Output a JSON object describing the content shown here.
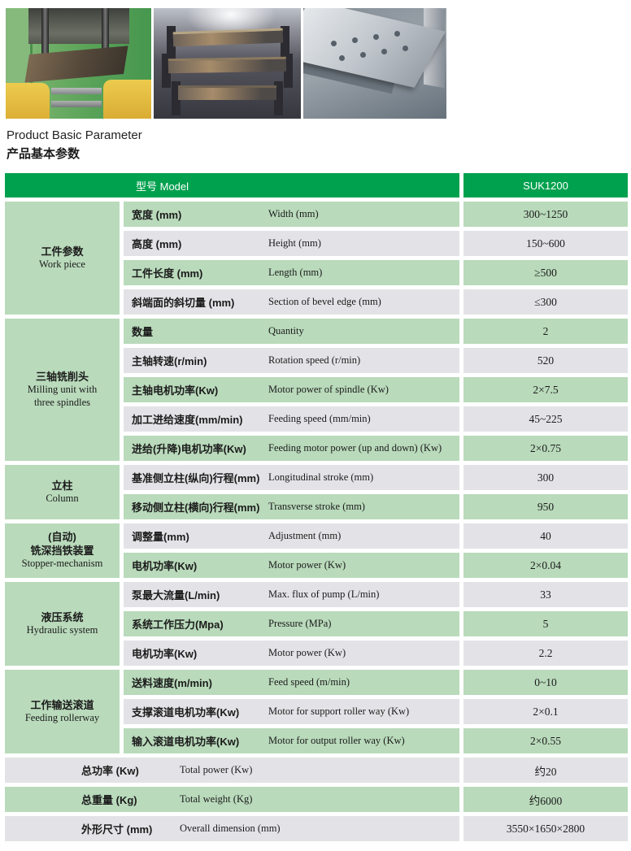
{
  "title": {
    "en": "Product Basic Parameter",
    "cn": "产品基本参数"
  },
  "photos": [
    {
      "name": "green-milling-machine-photo"
    },
    {
      "name": "stacked-h-beams-photo"
    },
    {
      "name": "drilled-steel-beam-photo"
    }
  ],
  "colors": {
    "header_green": "#00a14e",
    "row_green": "#b9dabb",
    "row_gray": "#e3e3e7"
  },
  "table": {
    "header": {
      "model_label": "型号 Model",
      "model_value": "SUK1200"
    },
    "groups": [
      {
        "cn": "工件参数",
        "en": "Work piece",
        "rows": [
          {
            "cn": "宽度 (mm)",
            "en": "Width (mm)",
            "value": "300~1250"
          },
          {
            "cn": "高度 (mm)",
            "en": "Height (mm)",
            "value": "150~600"
          },
          {
            "cn": "工件长度 (mm)",
            "en": "Length (mm)",
            "value": "≥500"
          },
          {
            "cn": "斜端面的斜切量 (mm)",
            "en": "Section of bevel edge (mm)",
            "value": "≤300"
          }
        ]
      },
      {
        "cn": "三轴铣削头",
        "en": "Milling unit with three spindles",
        "rows": [
          {
            "cn": "数量",
            "en": "Quantity",
            "value": "2"
          },
          {
            "cn": "主轴转速(r/min)",
            "en": "Rotation speed (r/min)",
            "value": "520"
          },
          {
            "cn": "主轴电机功率(Kw)",
            "en": "Motor power of spindle (Kw)",
            "value": "2×7.5"
          },
          {
            "cn": "加工进给速度(mm/min)",
            "en": "Feeding speed (mm/min)",
            "value": "45~225"
          },
          {
            "cn": "进给(升降)电机功率(Kw)",
            "en": "Feeding motor power (up and down) (Kw)",
            "value": "2×0.75"
          }
        ]
      },
      {
        "cn": "立柱",
        "en": "Column",
        "rows": [
          {
            "cn": "基准侧立柱(纵向)行程(mm)",
            "en": "Longitudinal stroke (mm)",
            "value": "300"
          },
          {
            "cn": "移动侧立柱(横向)行程(mm)",
            "en": "Transverse stroke (mm)",
            "value": "950"
          }
        ]
      },
      {
        "cn": "(自动)",
        "cn2": "铣深挡铁装置",
        "en": "Stopper-mechanism",
        "rows": [
          {
            "cn": "调整量(mm)",
            "en": "Adjustment (mm)",
            "value": "40"
          },
          {
            "cn": "电机功率(Kw)",
            "en": "Motor power (Kw)",
            "value": "2×0.04"
          }
        ]
      },
      {
        "cn": "液压系统",
        "en": "Hydraulic system",
        "rows": [
          {
            "cn": "泵最大流量(L/min)",
            "en": "Max. flux of pump (L/min)",
            "value": "33"
          },
          {
            "cn": "系统工作压力(Mpa)",
            "en": "Pressure (MPa)",
            "value": "5"
          },
          {
            "cn": "电机功率(Kw)",
            "en": "Motor power (Kw)",
            "value": "2.2"
          }
        ]
      },
      {
        "cn": "工作输送滚道",
        "en": "Feeding rollerway",
        "rows": [
          {
            "cn": "送料速度(m/min)",
            "en": "Feed speed (m/min)",
            "value": "0~10"
          },
          {
            "cn": "支撑滚道电机功率(Kw)",
            "en": "Motor for support roller way (Kw)",
            "value": "2×0.1"
          },
          {
            "cn": "输入滚道电机功率(Kw)",
            "en": "Motor for output roller way (Kw)",
            "value": "2×0.55"
          }
        ]
      }
    ],
    "footer_rows": [
      {
        "cn": "总功率 (Kw)",
        "en": "Total power (Kw)",
        "value": "约20"
      },
      {
        "cn": "总重量 (Kg)",
        "en": "Total weight (Kg)",
        "value": "约6000"
      },
      {
        "cn": "外形尺寸 (mm)",
        "en": "Overall dimension (mm)",
        "value": "3550×1650×2800"
      }
    ]
  }
}
